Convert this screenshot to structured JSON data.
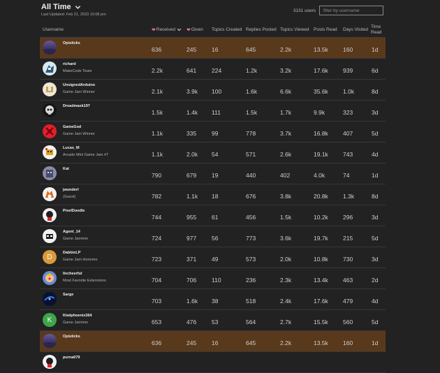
{
  "header": {
    "period": "All Time",
    "last_updated": "Last Updated: Feb 21, 2023 10:08 pm",
    "user_count": "3131 users",
    "filter_placeholder": "filter by username"
  },
  "columns": {
    "username": "Username",
    "received": "Received",
    "given": "Given",
    "topics_created": "Topics Created",
    "replies_posted": "Replies Posted",
    "topics_viewed": "Topics Viewed",
    "posts_read": "Posts Read",
    "days_visited": "Days Visited",
    "time_read_1": "Time",
    "time_read_2": "Read"
  },
  "colors": {
    "highlight_row": "#59391b",
    "heart": "#e4708f",
    "background": "#222222"
  },
  "rows": [
    {
      "username": "Opisticks",
      "title": "",
      "received": "636",
      "given": "245",
      "topics_created": "16",
      "replies_posted": "645",
      "topics_viewed": "2.2k",
      "posts_read": "13.5k",
      "days_visited": "160",
      "time_read": "1d",
      "avatar_letter": "",
      "avatar_icon": "night-sky-avatar",
      "highlight": true
    },
    {
      "username": "richard",
      "title": "MakeCode Team",
      "received": "2.2k",
      "given": "641",
      "topics_created": "224",
      "replies_posted": "1.2k",
      "topics_viewed": "3.2k",
      "posts_read": "17.6k",
      "days_visited": "939",
      "time_read": "6d",
      "avatar_letter": "",
      "avatar_icon": "character-avatar",
      "highlight": false
    },
    {
      "username": "UnsignedArduino",
      "title": "Game Jam Winner",
      "received": "2.1k",
      "given": "3.9k",
      "topics_created": "100",
      "replies_posted": "1.6k",
      "topics_viewed": "6.6k",
      "posts_read": "35.6k",
      "days_visited": "1.0k",
      "time_read": "8d",
      "avatar_letter": "",
      "avatar_icon": "arduino-avatar",
      "highlight": false
    },
    {
      "username": "Dreadmask197",
      "title": "",
      "received": "1.5k",
      "given": "1.4k",
      "topics_created": "111",
      "replies_posted": "1.5k",
      "topics_viewed": "1.7k",
      "posts_read": "9.9k",
      "days_visited": "323",
      "time_read": "3d",
      "avatar_letter": "",
      "avatar_icon": "skull-avatar",
      "highlight": false
    },
    {
      "username": "GameGod",
      "title": "Game Jam Winner",
      "received": "1.1k",
      "given": "335",
      "topics_created": "99",
      "replies_posted": "778",
      "topics_viewed": "3.7k",
      "posts_read": "16.8k",
      "days_visited": "407",
      "time_read": "5d",
      "avatar_letter": "",
      "avatar_icon": "red-emblem-avatar",
      "highlight": false
    },
    {
      "username": "Lucas_M",
      "title": "Arcade Mini Game Jam #7",
      "received": "1.1k",
      "given": "2.0k",
      "topics_created": "54",
      "replies_posted": "571",
      "topics_viewed": "2.6k",
      "posts_read": "19.1k",
      "days_visited": "743",
      "time_read": "4d",
      "avatar_letter": "",
      "avatar_icon": "pixel-creature-avatar",
      "highlight": false
    },
    {
      "username": "Kat",
      "title": "",
      "received": "790",
      "given": "679",
      "topics_created": "19",
      "replies_posted": "440",
      "topics_viewed": "402",
      "posts_read": "4.0k",
      "days_visited": "74",
      "time_read": "1d",
      "avatar_letter": "",
      "avatar_icon": "robot-avatar",
      "highlight": false
    },
    {
      "username": "jwunderl",
      "title": "(Guest)",
      "received": "782",
      "given": "1.1k",
      "topics_created": "18",
      "replies_posted": "676",
      "topics_viewed": "3.8k",
      "posts_read": "20.8k",
      "days_visited": "1.3k",
      "time_read": "8d",
      "avatar_letter": "",
      "avatar_icon": "fox-avatar",
      "highlight": false
    },
    {
      "username": "PixelDoodle",
      "title": "",
      "received": "744",
      "given": "955",
      "topics_created": "61",
      "replies_posted": "456",
      "topics_viewed": "1.5k",
      "posts_read": "10.2k",
      "days_visited": "296",
      "time_read": "3d",
      "avatar_letter": "",
      "avatar_icon": "cartoon-avatar",
      "highlight": false
    },
    {
      "username": "Agent_14",
      "title": "Game Jammer",
      "received": "724",
      "given": "977",
      "topics_created": "56",
      "replies_posted": "773",
      "topics_viewed": "3.6k",
      "posts_read": "19.7k",
      "days_visited": "215",
      "time_read": "5d",
      "avatar_letter": "",
      "avatar_icon": "agent-avatar",
      "highlight": false
    },
    {
      "username": "DabbixLP",
      "title": "Game Jam Honoree",
      "received": "723",
      "given": "371",
      "topics_created": "49",
      "replies_posted": "573",
      "topics_viewed": "2.0k",
      "posts_read": "10.8k",
      "days_visited": "730",
      "time_read": "3d",
      "avatar_letter": "D",
      "avatar_icon": "letter-avatar",
      "highlight": false
    },
    {
      "username": "livcheerful",
      "title": "Most Favorite Extensions",
      "received": "704",
      "given": "706",
      "topics_created": "110",
      "replies_posted": "236",
      "topics_viewed": "2.3k",
      "posts_read": "13.4k",
      "days_visited": "463",
      "time_read": "2d",
      "avatar_letter": "",
      "avatar_icon": "clown-avatar",
      "highlight": false
    },
    {
      "username": "Sarge",
      "title": "",
      "received": "703",
      "given": "1.6k",
      "topics_created": "38",
      "replies_posted": "518",
      "topics_viewed": "2.4k",
      "posts_read": "17.6k",
      "days_visited": "479",
      "time_read": "4d",
      "avatar_letter": "",
      "avatar_icon": "blue-galaxy-avatar",
      "highlight": false
    },
    {
      "username": "Kiwiphoenix364",
      "title": "Game Jammer",
      "received": "653",
      "given": "476",
      "topics_created": "53",
      "replies_posted": "564",
      "topics_viewed": "2.7k",
      "posts_read": "15.5k",
      "days_visited": "560",
      "time_read": "5d",
      "avatar_letter": "K",
      "avatar_icon": "letter-avatar",
      "highlight": false
    },
    {
      "username": "Opisticks",
      "title": "",
      "received": "636",
      "given": "245",
      "topics_created": "16",
      "replies_posted": "645",
      "topics_viewed": "2.2k",
      "posts_read": "13.5k",
      "days_visited": "160",
      "time_read": "1d",
      "avatar_letter": "",
      "avatar_icon": "night-sky-avatar",
      "highlight": true
    },
    {
      "username": "purna079",
      "title": "",
      "received": "",
      "given": "",
      "topics_created": "",
      "replies_posted": "",
      "topics_viewed": "",
      "posts_read": "",
      "days_visited": "",
      "time_read": "",
      "avatar_letter": "",
      "avatar_icon": "cartoon-avatar",
      "highlight": false
    }
  ]
}
